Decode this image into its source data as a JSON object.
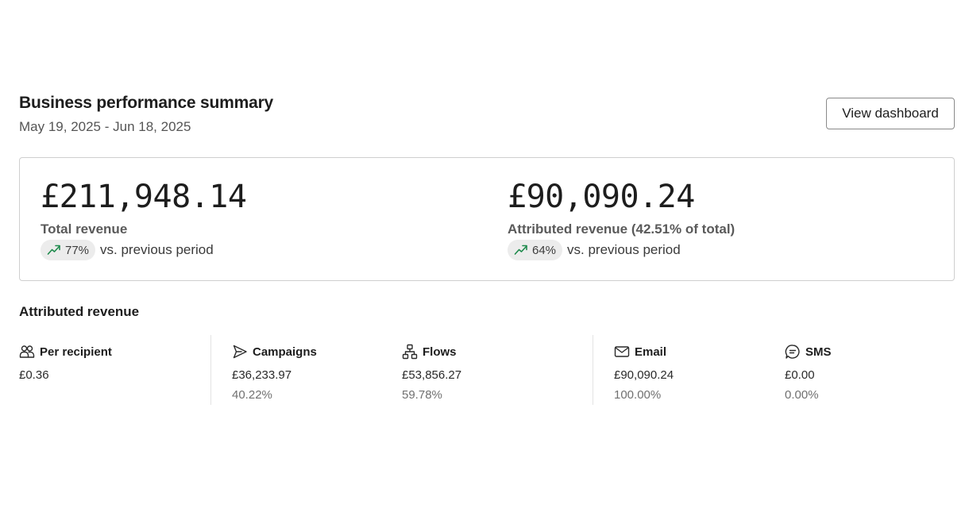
{
  "header": {
    "title": "Business performance summary",
    "date_range": "May 19, 2025 - Jun 18, 2025",
    "view_button_label": "View dashboard"
  },
  "summary": {
    "total": {
      "value": "£211,948.14",
      "label": "Total revenue",
      "delta": "77%",
      "delta_text": "vs. previous period",
      "delta_icon": "trending-up-icon"
    },
    "attributed": {
      "value": "£90,090.24",
      "label": "Attributed revenue (42.51% of total)",
      "delta": "64%",
      "delta_text": "vs. previous period",
      "delta_icon": "trending-up-icon"
    }
  },
  "breakdown": {
    "title": "Attributed revenue",
    "per_recipient": {
      "label": "Per recipient",
      "value": "£0.36",
      "icon": "users-icon"
    },
    "campaigns": {
      "label": "Campaigns",
      "value": "£36,233.97",
      "percent": "40.22%",
      "icon": "send-icon"
    },
    "flows": {
      "label": "Flows",
      "value": "£53,856.27",
      "percent": "59.78%",
      "icon": "flow-icon"
    },
    "email": {
      "label": "Email",
      "value": "£90,090.24",
      "percent": "100.00%",
      "icon": "mail-icon"
    },
    "sms": {
      "label": "SMS",
      "value": "£0.00",
      "percent": "0.00%",
      "icon": "message-icon"
    }
  },
  "colors": {
    "trend_up": "#1e8a4c",
    "badge_bg": "#ececec",
    "border": "#cfcfcf"
  }
}
